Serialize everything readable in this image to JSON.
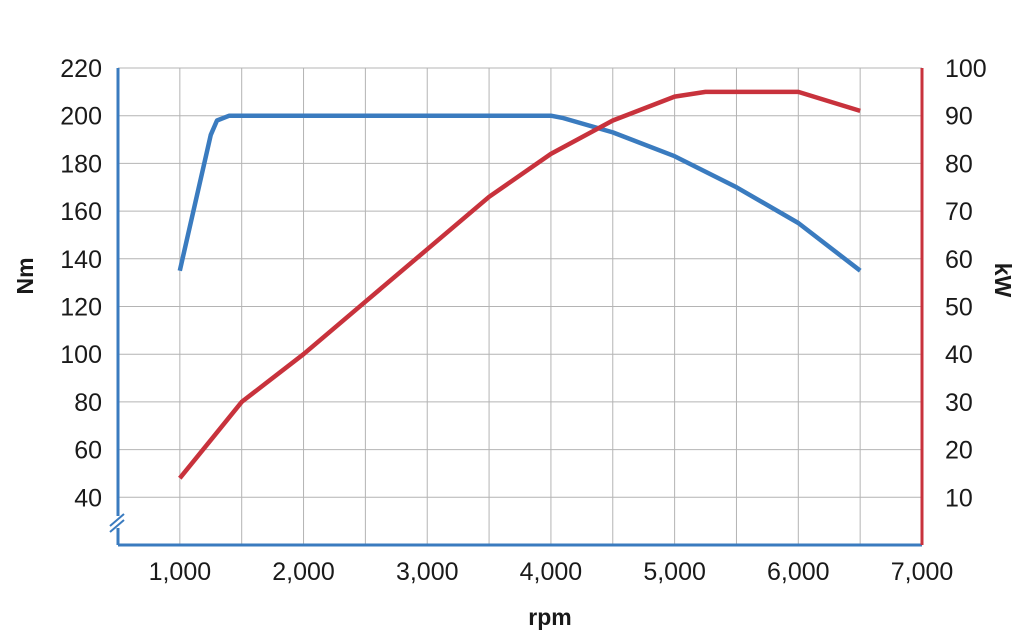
{
  "chart_data": {
    "type": "line",
    "title": "",
    "xlabel": "rpm",
    "ylabel_left": "Nm",
    "ylabel_right": "kW",
    "xlim": [
      500,
      7000
    ],
    "ylim_left": [
      20,
      220
    ],
    "ylim_right": [
      0,
      100
    ],
    "x_ticks": [
      1000,
      2000,
      3000,
      4000,
      5000,
      6000,
      7000
    ],
    "x_tick_labels": [
      "1,000",
      "2,000",
      "3,000",
      "4,000",
      "5,000",
      "6,000",
      "7,000"
    ],
    "y_left_ticks": [
      40,
      60,
      80,
      100,
      120,
      140,
      160,
      180,
      200,
      220
    ],
    "y_left_tick_labels": [
      "40",
      "60",
      "80",
      "100",
      "120",
      "140",
      "160",
      "180",
      "200",
      "220"
    ],
    "y_right_ticks": [
      10,
      20,
      30,
      40,
      50,
      60,
      70,
      80,
      90,
      100
    ],
    "y_right_tick_labels": [
      "10",
      "20",
      "30",
      "40",
      "50",
      "60",
      "70",
      "80",
      "90",
      "100"
    ],
    "x_gridlines": [
      1000,
      1500,
      2000,
      2500,
      3000,
      3500,
      4000,
      4500,
      5000,
      5500,
      6000,
      6500
    ],
    "grid": true,
    "legend": "none",
    "left_axis_break": true,
    "series": [
      {
        "axis": "left",
        "color": "#3a7bbf",
        "x": [
          1000,
          1250,
          1300,
          1400,
          1500,
          2000,
          3000,
          4000,
          4100,
          4500,
          5000,
          5500,
          6000,
          6500
        ],
        "y": [
          135,
          192,
          198,
          200,
          200,
          200,
          200,
          200,
          199,
          193,
          183,
          170,
          155,
          135
        ]
      },
      {
        "axis": "right",
        "color": "#c8323c",
        "x": [
          1000,
          1250,
          1500,
          2000,
          2500,
          3000,
          3500,
          4000,
          4500,
          5000,
          5250,
          5500,
          6000,
          6250,
          6500
        ],
        "y": [
          14,
          22,
          30,
          40,
          51,
          62,
          73,
          82,
          89,
          94,
          95,
          95,
          95,
          93,
          91
        ]
      }
    ]
  }
}
